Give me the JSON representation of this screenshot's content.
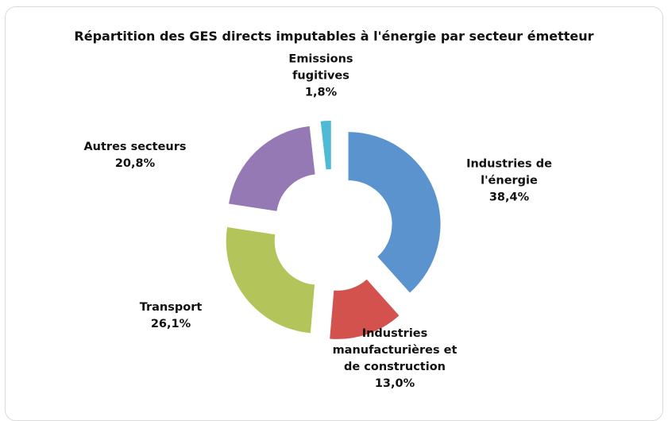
{
  "chart_data": {
    "type": "pie",
    "title": "Répartition des GES directs imputables à l'énergie par secteur émetteur",
    "categories": [
      "Industries de l'énergie",
      "Industries manufacturières et de construction",
      "Transport",
      "Autres secteurs",
      "Emissions fugitives"
    ],
    "values": [
      38.4,
      13.0,
      26.1,
      20.8,
      1.8
    ],
    "value_labels": [
      "38,4%",
      "13,0%",
      "26,1%",
      "20,8%",
      "1,8%"
    ],
    "colors": [
      "#5b93cf",
      "#d4524e",
      "#b3c55a",
      "#9579b4",
      "#4fbad6"
    ]
  }
}
